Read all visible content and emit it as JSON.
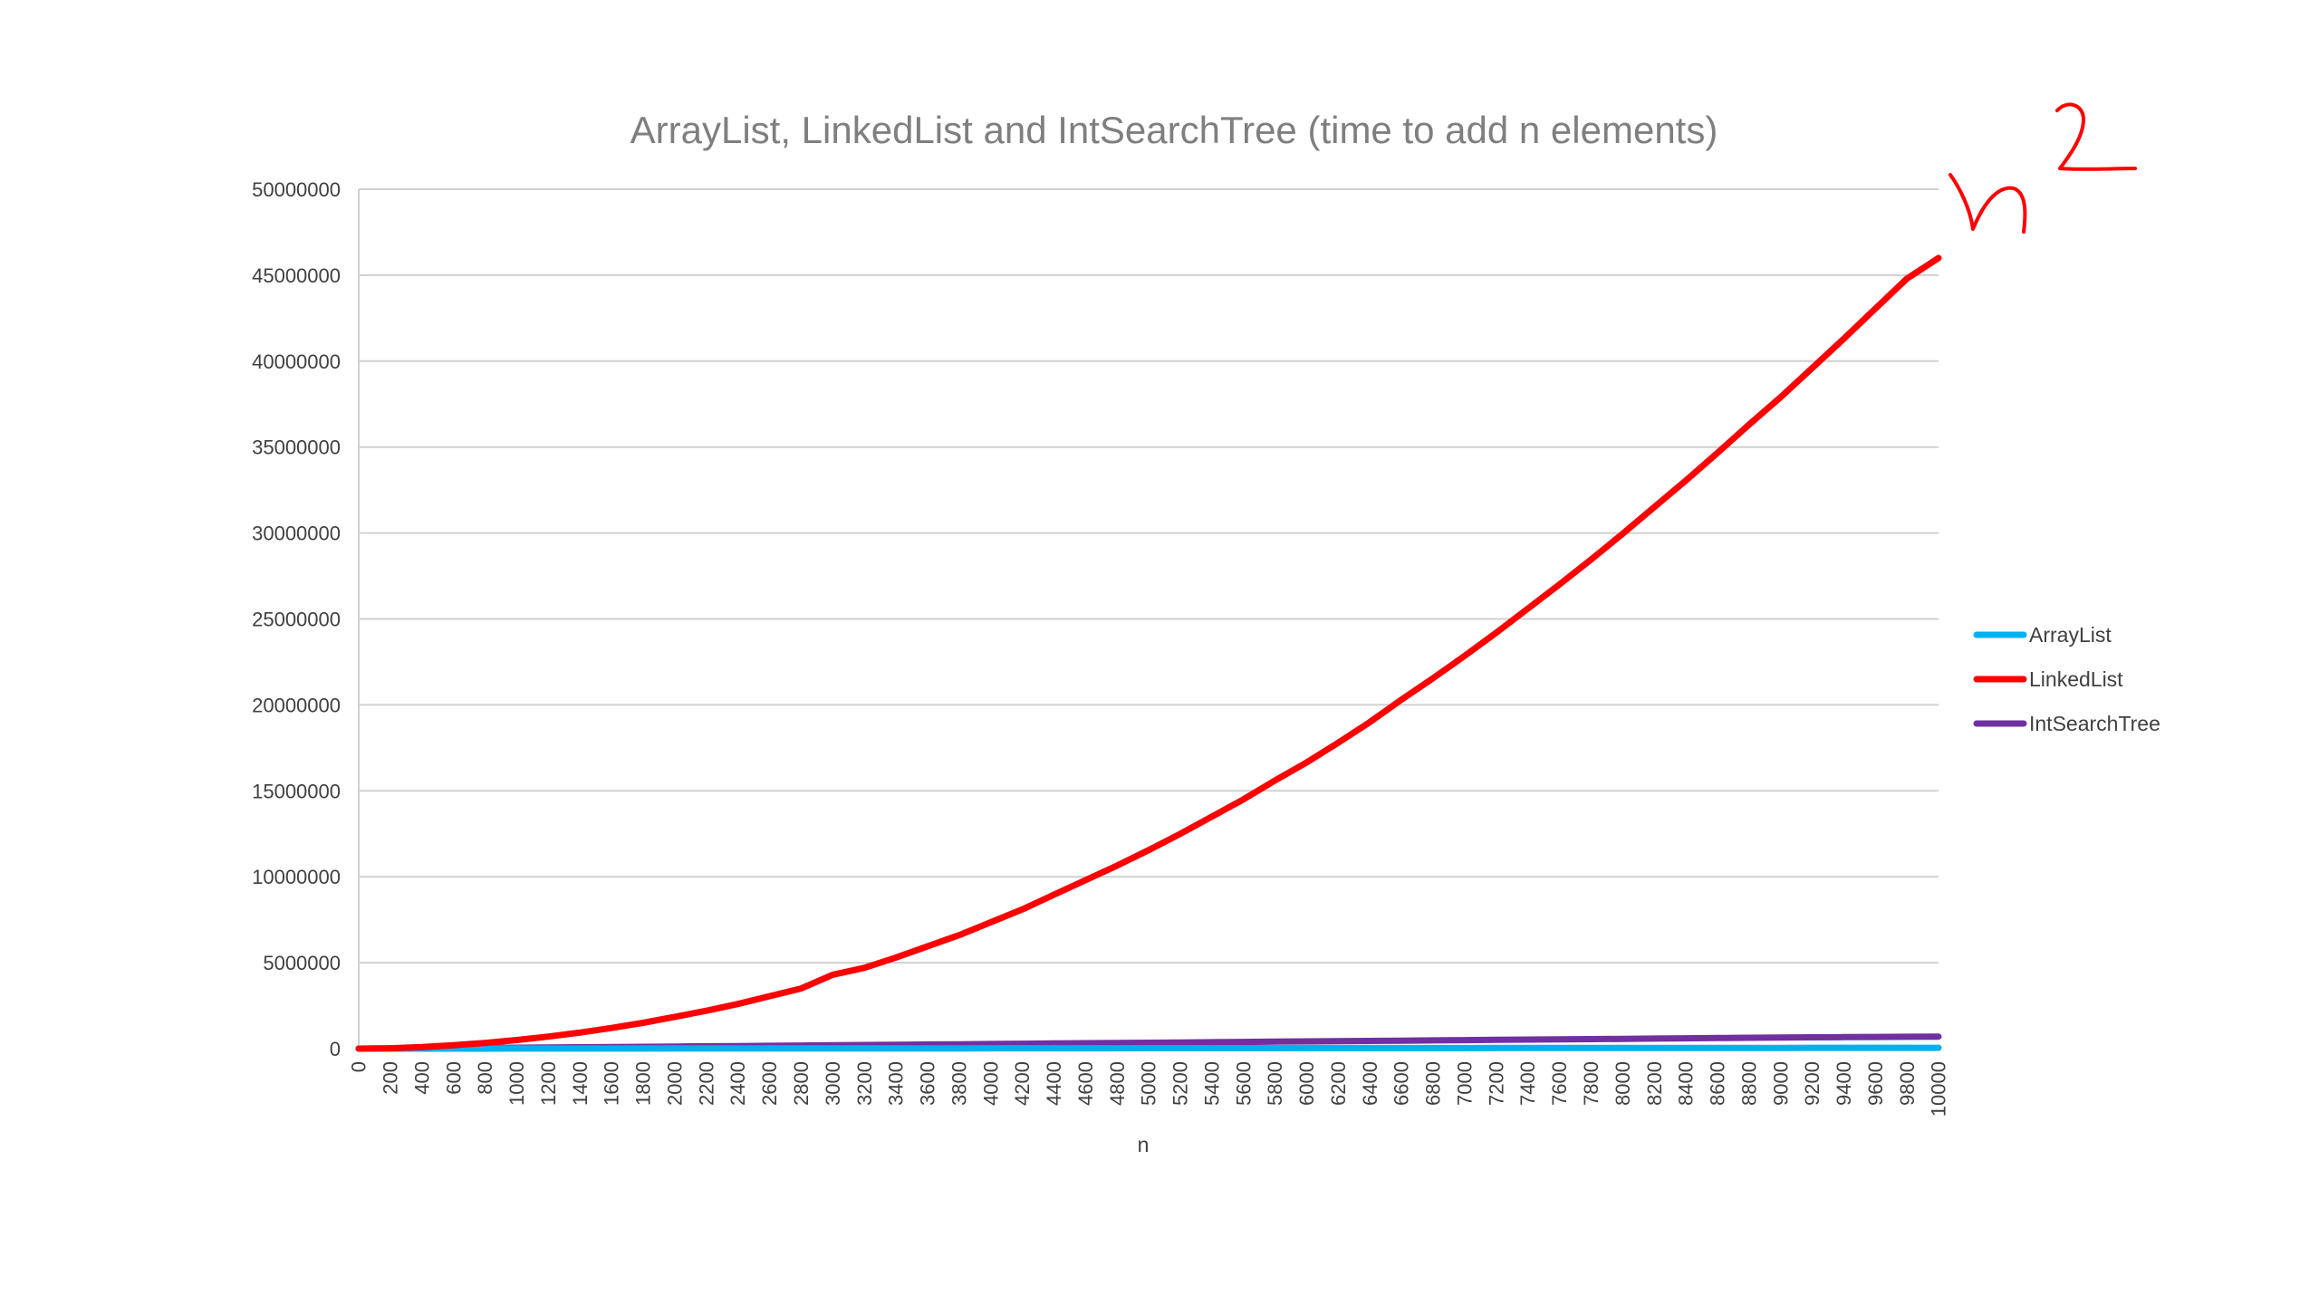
{
  "chart_data": {
    "type": "line",
    "title": "ArrayList, LinkedList and IntSearchTree (time to add n elements)",
    "xlabel": "n",
    "ylabel": "",
    "xlim": [
      0,
      10000
    ],
    "ylim": [
      0,
      50000000
    ],
    "x_ticks": [
      "0",
      "200",
      "400",
      "600",
      "800",
      "1000",
      "1200",
      "1400",
      "1600",
      "1800",
      "2000",
      "2200",
      "2400",
      "2600",
      "2800",
      "3000",
      "3200",
      "3400",
      "3600",
      "3800",
      "4000",
      "4200",
      "4400",
      "4600",
      "4800",
      "5000",
      "5200",
      "5400",
      "5600",
      "5800",
      "6000",
      "6200",
      "6400",
      "6600",
      "6800",
      "7000",
      "7200",
      "7400",
      "7600",
      "7800",
      "8000",
      "8200",
      "8400",
      "8600",
      "8800",
      "9000",
      "9200",
      "9400",
      "9600",
      "9800",
      "10000"
    ],
    "y_ticks": [
      "0",
      "5000000",
      "10000000",
      "15000000",
      "20000000",
      "25000000",
      "30000000",
      "35000000",
      "40000000",
      "45000000",
      "50000000"
    ],
    "grid": true,
    "legend_position": "right",
    "x": [
      0,
      200,
      400,
      600,
      800,
      1000,
      1200,
      1400,
      1600,
      1800,
      2000,
      2200,
      2400,
      2600,
      2800,
      3000,
      3200,
      3400,
      3600,
      3800,
      4000,
      4200,
      4400,
      4600,
      4800,
      5000,
      5200,
      5400,
      5600,
      5800,
      6000,
      6200,
      6400,
      6600,
      6800,
      7000,
      7200,
      7400,
      7600,
      7800,
      8000,
      8200,
      8400,
      8600,
      8800,
      9000,
      9200,
      9400,
      9600,
      9800,
      10000
    ],
    "series": [
      {
        "name": "ArrayList",
        "color": "#00b0f0",
        "values": [
          0,
          500,
          1000,
          1500,
          2000,
          3000,
          4000,
          5000,
          6000,
          7000,
          8000,
          9000,
          10000,
          11000,
          12000,
          14000,
          15000,
          16000,
          17000,
          18000,
          19000,
          20000,
          21000,
          22000,
          23000,
          24000,
          25000,
          26000,
          27000,
          28000,
          29000,
          30000,
          31000,
          32000,
          33000,
          34000,
          35000,
          36000,
          37000,
          38000,
          39000,
          40000,
          41000,
          42000,
          43000,
          44000,
          45000,
          46000,
          47000,
          48000,
          50000
        ]
      },
      {
        "name": "LinkedList",
        "color": "#ff0000",
        "values": [
          0,
          20000,
          90000,
          200000,
          330000,
          500000,
          700000,
          930000,
          1200000,
          1500000,
          1850000,
          2200000,
          2600000,
          3050000,
          3500000,
          4300000,
          4700000,
          5300000,
          5950000,
          6600000,
          7350000,
          8100000,
          8950000,
          9800000,
          10650000,
          11550000,
          12500000,
          13500000,
          14500000,
          15600000,
          16650000,
          17800000,
          19000000,
          20300000,
          21550000,
          22850000,
          24200000,
          25600000,
          27000000,
          28450000,
          29950000,
          31500000,
          33050000,
          34650000,
          36300000,
          37900000,
          39600000,
          41300000,
          43050000,
          44800000,
          46000000
        ]
      },
      {
        "name": "IntSearchTree",
        "color": "#7030a0",
        "values": [
          0,
          10000,
          20000,
          30000,
          40000,
          55000,
          65000,
          80000,
          95000,
          105000,
          120000,
          135000,
          150000,
          165000,
          180000,
          200000,
          210000,
          225000,
          240000,
          255000,
          270000,
          285000,
          300000,
          315000,
          330000,
          345000,
          360000,
          375000,
          390000,
          405000,
          420000,
          435000,
          450000,
          465000,
          480000,
          495000,
          510000,
          525000,
          540000,
          555000,
          570000,
          585000,
          600000,
          615000,
          630000,
          645000,
          660000,
          670000,
          680000,
          690000,
          700000
        ]
      }
    ]
  }
}
